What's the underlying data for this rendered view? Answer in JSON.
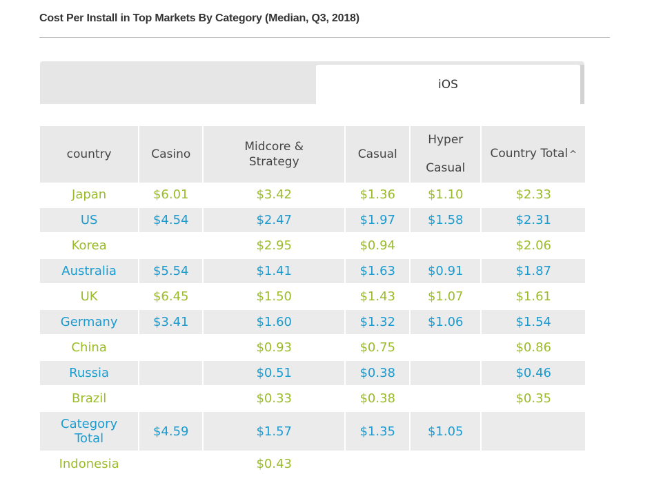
{
  "title": "Cost Per Install in Top Markets By Category (Median, Q3, 2018)",
  "tabs": {
    "active_label": "iOS"
  },
  "chart_data": {
    "type": "table",
    "title": "Cost Per Install in Top Markets By Category (Median, Q3, 2018)",
    "columns": [
      "country",
      "Casino",
      "Midcore & Strategy",
      "Casual",
      "Hyper Casual",
      "Country Total"
    ],
    "header_labels": {
      "country": "country",
      "casino": "Casino",
      "midcore": "Midcore & Strategy",
      "casual": "Casual",
      "hyper": "Hyper Casual",
      "total": "Country Total",
      "sort_indicator": "^"
    },
    "rows": [
      {
        "country": "Japan",
        "casino": "$6.01",
        "midcore": "$3.42",
        "casual": "$1.36",
        "hyper": "$1.10",
        "total": "$2.33"
      },
      {
        "country": "US",
        "casino": "$4.54",
        "midcore": "$2.47",
        "casual": "$1.97",
        "hyper": "$1.58",
        "total": "$2.31"
      },
      {
        "country": "Korea",
        "casino": "",
        "midcore": "$2.95",
        "casual": "$0.94",
        "hyper": "",
        "total": "$2.06"
      },
      {
        "country": "Australia",
        "casino": "$5.54",
        "midcore": "$1.41",
        "casual": "$1.63",
        "hyper": "$0.91",
        "total": "$1.87"
      },
      {
        "country": "UK",
        "casino": "$6.45",
        "midcore": "$1.50",
        "casual": "$1.43",
        "hyper": "$1.07",
        "total": "$1.61"
      },
      {
        "country": "Germany",
        "casino": "$3.41",
        "midcore": "$1.60",
        "casual": "$1.32",
        "hyper": "$1.06",
        "total": "$1.54"
      },
      {
        "country": "China",
        "casino": "",
        "midcore": "$0.93",
        "casual": "$0.75",
        "hyper": "",
        "total": "$0.86"
      },
      {
        "country": "Russia",
        "casino": "",
        "midcore": "$0.51",
        "casual": "$0.38",
        "hyper": "",
        "total": "$0.46"
      },
      {
        "country": "Brazil",
        "casino": "",
        "midcore": "$0.33",
        "casual": "$0.38",
        "hyper": "",
        "total": "$0.35"
      },
      {
        "country": "Category Total",
        "casino": "$4.59",
        "midcore": "$1.57",
        "casual": "$1.35",
        "hyper": "$1.05",
        "total": ""
      },
      {
        "country": "Indonesia",
        "casino": "",
        "midcore": "$0.43",
        "casual": "",
        "hyper": "",
        "total": ""
      }
    ],
    "colors": {
      "odd_row_text": "#9bbb2a",
      "even_row_text": "#1b9bd0",
      "header_bg": "#e9e9e9",
      "stripe_bg": "#ebebeb"
    }
  }
}
